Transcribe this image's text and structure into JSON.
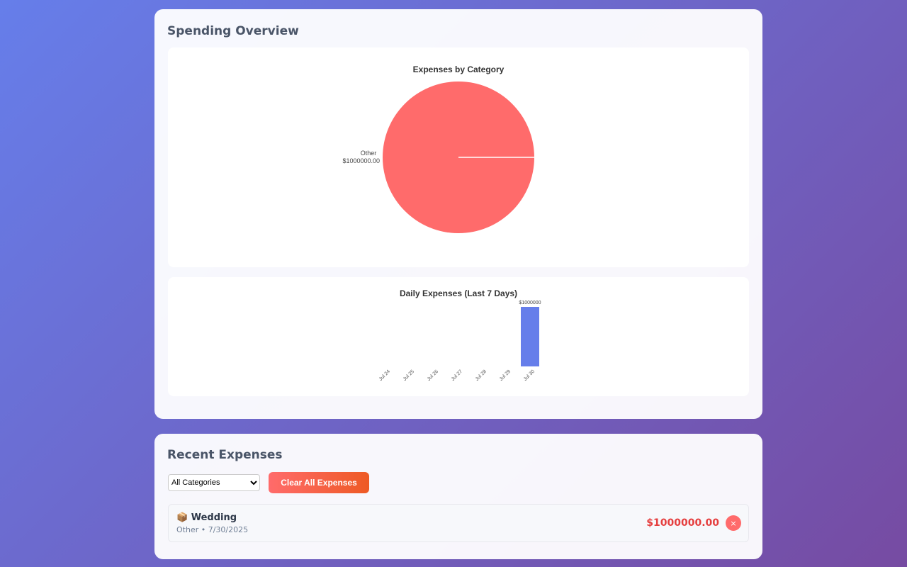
{
  "overview": {
    "title": "Spending Overview"
  },
  "pie_chart": {
    "type": "pie",
    "title": "Expenses by Category",
    "categories": [
      "Other"
    ],
    "values": [
      1000000
    ],
    "value_labels": [
      "$1000000.00"
    ],
    "colors": [
      "#ff6b6b"
    ]
  },
  "bar_chart": {
    "type": "bar",
    "title": "Daily Expenses (Last 7 Days)",
    "categories": [
      "Jul 24",
      "Jul 25",
      "Jul 26",
      "Jul 27",
      "Jul 28",
      "Jul 29",
      "Jul 30"
    ],
    "values": [
      0,
      0,
      0,
      0,
      0,
      0,
      1000000
    ],
    "value_labels": [
      null,
      null,
      null,
      null,
      null,
      null,
      "$1000000"
    ],
    "color": "#667eea"
  },
  "recent": {
    "title": "Recent Expenses",
    "filter": "All Categories",
    "clear_button": "Clear All Expenses",
    "items": [
      {
        "icon": "📦",
        "name": "Wedding",
        "category": "Other",
        "date": "7/30/2025",
        "amount": "$1000000.00",
        "delete": "×"
      }
    ]
  }
}
